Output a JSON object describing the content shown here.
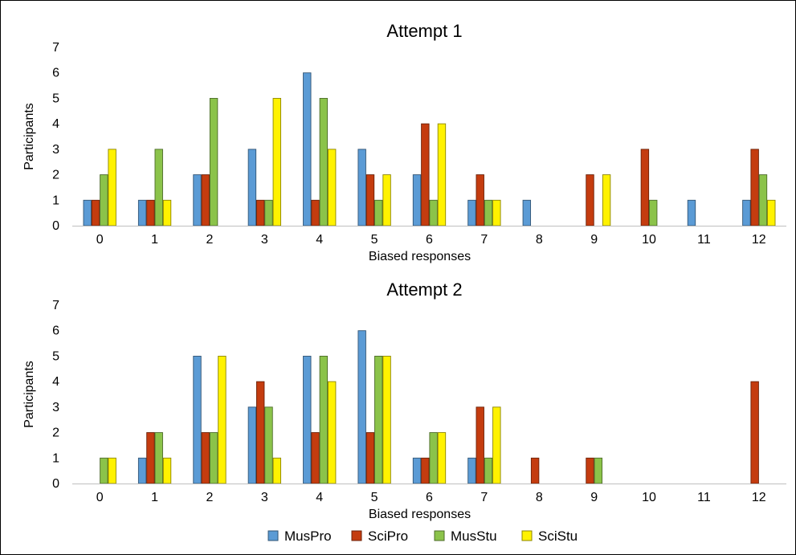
{
  "chart_data": [
    {
      "type": "bar",
      "title": "Attempt 1",
      "xlabel": "Biased responses",
      "ylabel": "Participants",
      "ylim": [
        0,
        7
      ],
      "yticks": [
        0,
        1,
        2,
        3,
        4,
        5,
        6,
        7
      ],
      "categories": [
        "0",
        "1",
        "2",
        "3",
        "4",
        "5",
        "6",
        "7",
        "8",
        "9",
        "10",
        "11",
        "12"
      ],
      "grid": false,
      "series": [
        {
          "name": "MusPro",
          "color": "#5B9BD5",
          "values": [
            1,
            1,
            2,
            3,
            6,
            3,
            2,
            1,
            1,
            0,
            0,
            1,
            1
          ]
        },
        {
          "name": "SciPro",
          "color": "#C43C0F",
          "values": [
            1,
            1,
            2,
            1,
            1,
            2,
            4,
            2,
            0,
            2,
            3,
            0,
            3
          ]
        },
        {
          "name": "MusStu",
          "color": "#8BC34A",
          "values": [
            2,
            3,
            5,
            1,
            5,
            1,
            1,
            1,
            0,
            0,
            1,
            0,
            2
          ]
        },
        {
          "name": "SciStu",
          "color": "#FFF200",
          "values": [
            3,
            1,
            0,
            5,
            3,
            2,
            4,
            1,
            0,
            2,
            0,
            0,
            1
          ]
        }
      ]
    },
    {
      "type": "bar",
      "title": "Attempt 2",
      "xlabel": "Biased responses",
      "ylabel": "Participants",
      "ylim": [
        0,
        7
      ],
      "yticks": [
        0,
        1,
        2,
        3,
        4,
        5,
        6,
        7
      ],
      "categories": [
        "0",
        "1",
        "2",
        "3",
        "4",
        "5",
        "6",
        "7",
        "8",
        "9",
        "10",
        "11",
        "12"
      ],
      "grid": false,
      "series": [
        {
          "name": "MusPro",
          "color": "#5B9BD5",
          "values": [
            0,
            1,
            5,
            3,
            5,
            6,
            1,
            1,
            0,
            0,
            0,
            0,
            0
          ]
        },
        {
          "name": "SciPro",
          "color": "#C43C0F",
          "values": [
            0,
            2,
            2,
            4,
            2,
            2,
            1,
            3,
            1,
            1,
            0,
            0,
            4
          ]
        },
        {
          "name": "MusStu",
          "color": "#8BC34A",
          "values": [
            1,
            2,
            2,
            3,
            5,
            5,
            2,
            1,
            0,
            1,
            0,
            0,
            0
          ]
        },
        {
          "name": "SciStu",
          "color": "#FFF200",
          "values": [
            1,
            1,
            5,
            1,
            4,
            5,
            2,
            3,
            0,
            0,
            0,
            0,
            0
          ]
        }
      ]
    }
  ],
  "legend": {
    "placement": "bottom",
    "items": [
      {
        "name": "MusPro",
        "color": "#5B9BD5"
      },
      {
        "name": "SciPro",
        "color": "#C43C0F"
      },
      {
        "name": "MusStu",
        "color": "#8BC34A"
      },
      {
        "name": "SciStu",
        "color": "#FFF200"
      }
    ]
  }
}
